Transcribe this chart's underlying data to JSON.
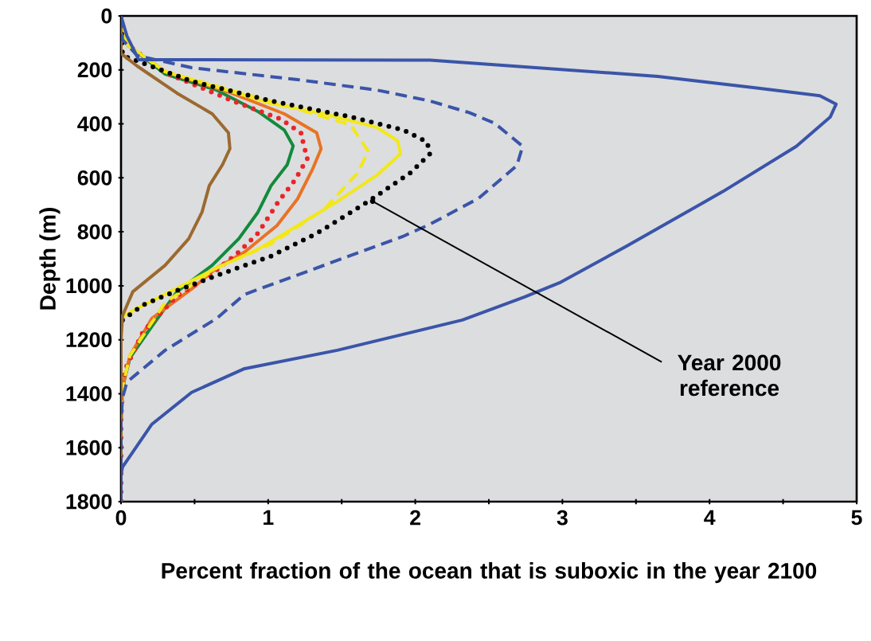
{
  "chart_data": {
    "type": "line",
    "xlabel": "Percent fraction of the ocean that is suboxic in the year 2100",
    "ylabel": "Depth (m)",
    "xlim": [
      0,
      5
    ],
    "ylim": [
      1800,
      0
    ],
    "xticks": [
      0,
      {
        "value": 0.5,
        "label": null
      },
      1,
      {
        "value": 1.5,
        "label": null
      },
      2,
      {
        "value": 2.5,
        "label": null
      },
      3,
      {
        "value": 3.5,
        "label": null
      },
      4,
      {
        "value": 4.5,
        "label": null
      },
      5
    ],
    "yticks": [
      0,
      200,
      400,
      600,
      800,
      1000,
      1200,
      1400,
      1600,
      1800
    ],
    "grid": false,
    "marker": "none",
    "annotations": [
      {
        "text": "Year 2000 reference",
        "x": 1.71,
        "y": 687
      }
    ],
    "series": [
      {
        "color": "#138a3c",
        "line_style": "solid",
        "x": [
          0,
          0.02,
          0.05,
          0.3,
          0.65,
          0.93,
          1.11,
          1.17,
          1.13,
          1.02,
          0.93,
          0.8,
          0.62,
          0.38,
          0.21,
          0.06,
          0.01,
          0,
          0
        ],
        "values": [
          0,
          60,
          110,
          216,
          275,
          354,
          423,
          482,
          551,
          629,
          728,
          826,
          924,
          1022,
          1150,
          1268,
          1377,
          1500,
          1800
        ]
      },
      {
        "color": "#e97324",
        "line_style": "solid",
        "x": [
          0,
          0.02,
          0.05,
          0.3,
          0.75,
          1.11,
          1.33,
          1.36,
          1.3,
          1.2,
          1.06,
          0.84,
          0.65,
          0.48,
          0.21,
          0.06,
          0.01,
          0,
          0
        ],
        "values": [
          0,
          60,
          110,
          206,
          286,
          363,
          433,
          492,
          570,
          678,
          777,
          875,
          934,
          1012,
          1121,
          1259,
          1377,
          1500,
          1800
        ]
      },
      {
        "color": "#e8262a",
        "line_style": "dotted",
        "x": [
          0,
          0.02,
          0.05,
          0.3,
          0.8,
          1.09,
          1.23,
          1.24,
          1.27,
          1.18,
          1.07,
          0.93,
          0.8,
          0.6,
          0.38,
          0.15,
          0.03,
          0.01,
          0,
          0
        ],
        "values": [
          0,
          60,
          110,
          210,
          324,
          383,
          437,
          482,
          525,
          610,
          688,
          806,
          875,
          964,
          1038,
          1170,
          1308,
          1377,
          1500,
          1800
        ]
      },
      {
        "color": "#f2e81a",
        "line_style": "solid",
        "x": [
          0,
          0.02,
          0.05,
          0.3,
          1.02,
          1.38,
          1.74,
          1.88,
          1.9,
          1.74,
          1.47,
          1.2,
          0.93,
          0.65,
          0.38,
          0.08,
          0.01,
          0,
          0
        ],
        "values": [
          0,
          60,
          110,
          206,
          324,
          363,
          413,
          463,
          511,
          590,
          688,
          777,
          865,
          934,
          1009,
          1092,
          1115,
          1200,
          1800
        ]
      },
      {
        "color": "#f2e81a",
        "line_style": "dashed",
        "x": [
          0,
          0.02,
          0.05,
          0.3,
          1.2,
          1.56,
          1.68,
          1.61,
          1.38,
          1.02,
          0.65,
          0.3,
          0.06,
          0.01,
          0,
          0
        ],
        "values": [
          0,
          60,
          110,
          206,
          345,
          404,
          501,
          581,
          717,
          845,
          934,
          1062,
          1259,
          1377,
          1500,
          1800
        ]
      },
      {
        "color": "#000000",
        "line_style": "dotted",
        "x": [
          0,
          0.01,
          0.48,
          1.02,
          1.56,
          1.92,
          2.08,
          2.1,
          1.97,
          1.68,
          1.33,
          1.02,
          0.69,
          0.38,
          0.15,
          0.01
        ],
        "values": [
          0,
          147,
          242,
          315,
          374,
          423,
          467,
          511,
          580,
          688,
          806,
          890,
          954,
          1018,
          1071,
          1127
        ]
      },
      {
        "color": "#9b6a30",
        "line_style": "solid",
        "x": [
          0,
          0,
          0.11,
          0.38,
          0.62,
          0.73,
          0.74,
          0.69,
          0.6,
          0.55,
          0.46,
          0.3,
          0.08,
          0.01,
          0,
          0
        ],
        "values": [
          0,
          139,
          186,
          286,
          363,
          433,
          492,
          551,
          629,
          728,
          826,
          924,
          1022,
          1111,
          1200,
          1800
        ]
      },
      {
        "color": "#3a55a8",
        "line_style": "dashed",
        "x": [
          0,
          0.01,
          0.11,
          0.48,
          1.2,
          1.74,
          2.1,
          2.37,
          2.54,
          2.73,
          2.69,
          2.43,
          2.1,
          1.92,
          1.38,
          0.84,
          0.65,
          0.3,
          0.04,
          0.01,
          0,
          0
        ],
        "values": [
          0,
          88,
          147,
          192,
          236,
          275,
          315,
          359,
          398,
          483,
          555,
          676,
          772,
          816,
          924,
          1032,
          1121,
          1239,
          1357,
          1416,
          1500,
          1800
        ]
      },
      {
        "color": "#3a55a8",
        "line_style": "solid",
        "x": [
          0,
          0.04,
          0.12,
          2.1,
          3.65,
          4.31,
          4.75,
          4.86,
          4.82,
          4.59,
          4.09,
          3.43,
          2.98,
          2.74,
          2.32,
          1.47,
          0.84,
          0.48,
          0.21,
          0.01,
          0,
          0
        ],
        "values": [
          0,
          74,
          162,
          164,
          224,
          266,
          296,
          327,
          375,
          483,
          651,
          855,
          989,
          1042,
          1127,
          1239,
          1307,
          1395,
          1513,
          1672,
          1700,
          1800
        ]
      }
    ]
  }
}
